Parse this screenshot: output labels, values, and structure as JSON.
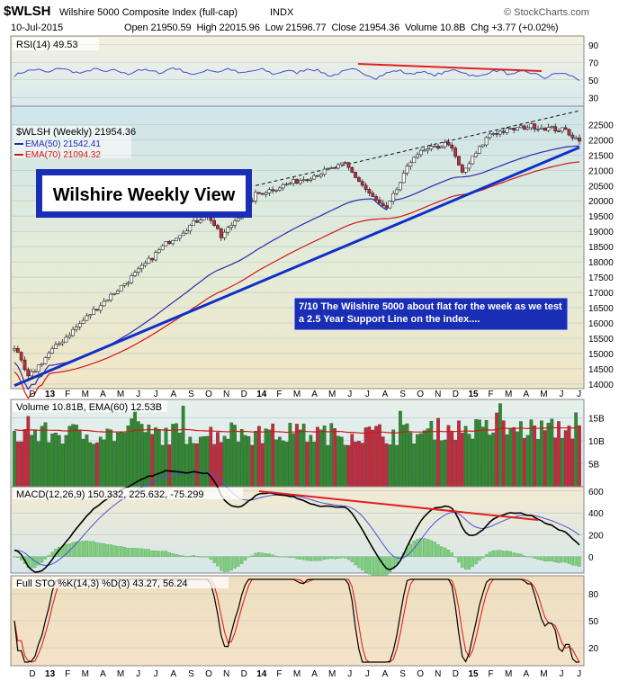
{
  "header": {
    "symbol": "$WLSH",
    "name": "Wilshire 5000 Composite Index (full-cap)",
    "exchange": "INDX",
    "date": "10-Jul-2015",
    "quote": "Open 21950.59  High 22015.96  Low 21596.77  Close 21954.36  Volume 10.8B  Chg +3.77 (+0.02%)",
    "credit": "© StockCharts.com"
  },
  "colors": {
    "up_bar": "#2e8b2e",
    "down_bar": "#c8283c",
    "ema50": "#2a2ab0",
    "ema70": "#d01818",
    "trendline": "#1030c8",
    "annot_border": "#1a2db5"
  },
  "chart_data": [
    {
      "type": "line",
      "panel": "rsi",
      "label": "RSI(14) 49.53",
      "y_ticks": [
        30,
        50,
        70,
        90
      ],
      "ylim": [
        20,
        100
      ],
      "values": [
        55,
        60,
        62,
        58,
        64,
        60,
        57,
        63,
        59,
        61,
        56,
        62,
        60,
        58,
        64,
        60,
        55,
        62,
        59,
        63,
        57,
        60,
        62,
        56,
        61,
        58,
        63,
        60,
        54,
        59,
        62,
        57,
        52,
        58,
        61,
        56,
        60,
        55,
        58,
        62,
        57,
        53,
        59,
        61,
        55,
        60,
        57,
        52,
        58,
        56,
        50
      ]
    },
    {
      "type": "candlestick",
      "panel": "price",
      "label": "$WLSH (Weekly) 21954.36",
      "legend": [
        "EMA(50) 21542.41",
        "EMA(70) 21094.32"
      ],
      "annotation_title": "Wilshire Weekly View",
      "annotation_note": "7/10  The Wilshire 5000 about flat for the week as we test a 2.5 Year Support Line on the index....",
      "y_ticks": [
        14000,
        14500,
        15000,
        15500,
        16000,
        16500,
        17000,
        17500,
        18000,
        18500,
        19000,
        19500,
        20000,
        20500,
        21000,
        21500,
        22000,
        22500
      ],
      "ylim": [
        13850,
        23100
      ],
      "x_labels": [
        "D",
        "13",
        "F",
        "M",
        "A",
        "M",
        "J",
        "J",
        "A",
        "S",
        "O",
        "N",
        "D",
        "14",
        "F",
        "M",
        "A",
        "M",
        "J",
        "J",
        "A",
        "S",
        "O",
        "N",
        "D",
        "15",
        "F",
        "M",
        "A",
        "M",
        "J",
        "J"
      ],
      "anchors": [
        [
          0,
          15200
        ],
        [
          4,
          14200
        ],
        [
          10,
          15000
        ],
        [
          22,
          16300
        ],
        [
          36,
          17700
        ],
        [
          44,
          18600
        ],
        [
          56,
          19600
        ],
        [
          60,
          18800
        ],
        [
          70,
          20200
        ],
        [
          86,
          20800
        ],
        [
          96,
          21200
        ],
        [
          104,
          20100
        ],
        [
          108,
          19700
        ],
        [
          116,
          21500
        ],
        [
          126,
          21900
        ],
        [
          130,
          20900
        ],
        [
          138,
          22200
        ],
        [
          150,
          22450
        ],
        [
          160,
          22300
        ],
        [
          164,
          21954
        ]
      ],
      "support_line": [
        [
          0,
          13950
        ],
        [
          164,
          21750
        ]
      ],
      "resistance_line": [
        [
          70,
          20500
        ],
        [
          164,
          22950
        ]
      ]
    },
    {
      "type": "bar",
      "panel": "volume",
      "label": "Volume 10.81B, EMA(60) 12.53B",
      "y_ticks": [
        "5B",
        "10B",
        "15B"
      ],
      "ylim": [
        0,
        19
      ]
    },
    {
      "type": "line",
      "panel": "macd",
      "label": "MACD(12,26,9) 150.332, 225.632, -75.299",
      "y_ticks": [
        0,
        200,
        400,
        600
      ],
      "ylim": [
        -150,
        640
      ]
    },
    {
      "type": "line",
      "panel": "stochastic",
      "label": "Full STO %K(14,3) %D(3) 43.27, 56.24",
      "y_ticks": [
        20,
        50,
        80
      ],
      "ylim": [
        0,
        100
      ]
    }
  ]
}
